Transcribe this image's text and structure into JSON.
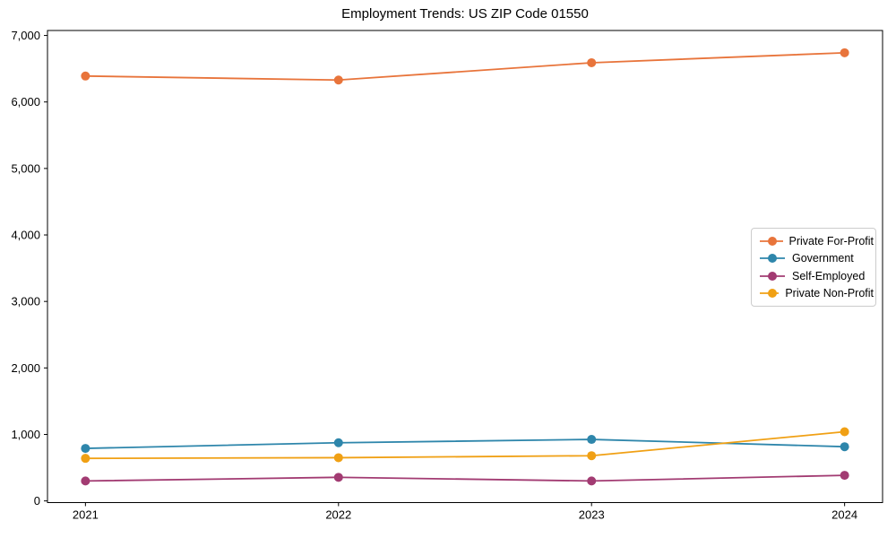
{
  "chart_data": {
    "type": "line",
    "title": "Employment Trends: US ZIP Code 01550",
    "xlabel": "",
    "ylabel": "",
    "x": [
      2021,
      2022,
      2023,
      2024
    ],
    "categories": [
      "2021",
      "2022",
      "2023",
      "2024"
    ],
    "series": [
      {
        "name": "Private For-Profit",
        "color": "#e8743b",
        "values": [
          6390,
          6330,
          6590,
          6740
        ]
      },
      {
        "name": "Government",
        "color": "#2e86ab",
        "values": [
          790,
          875,
          925,
          815
        ]
      },
      {
        "name": "Self-Employed",
        "color": "#a23b72",
        "values": [
          300,
          355,
          300,
          385
        ]
      },
      {
        "name": "Private Non-Profit",
        "color": "#f0a014",
        "values": [
          640,
          650,
          680,
          1040
        ]
      }
    ],
    "xlim": [
      2020.85,
      2024.15
    ],
    "ylim": [
      -25,
      7075
    ],
    "x_ticks": [
      2021,
      2022,
      2023,
      2024
    ],
    "x_tick_labels": [
      "2021",
      "2022",
      "2023",
      "2024"
    ],
    "y_ticks": [
      0,
      1000,
      2000,
      3000,
      4000,
      5000,
      6000,
      7000
    ],
    "y_tick_labels": [
      "0",
      "1,000",
      "2,000",
      "3,000",
      "4,000",
      "5,000",
      "6,000",
      "7,000"
    ],
    "grid": false,
    "legend_position": "center-right",
    "axis_color": "#000000",
    "background_color": "#ffffff",
    "marker": "circle"
  }
}
